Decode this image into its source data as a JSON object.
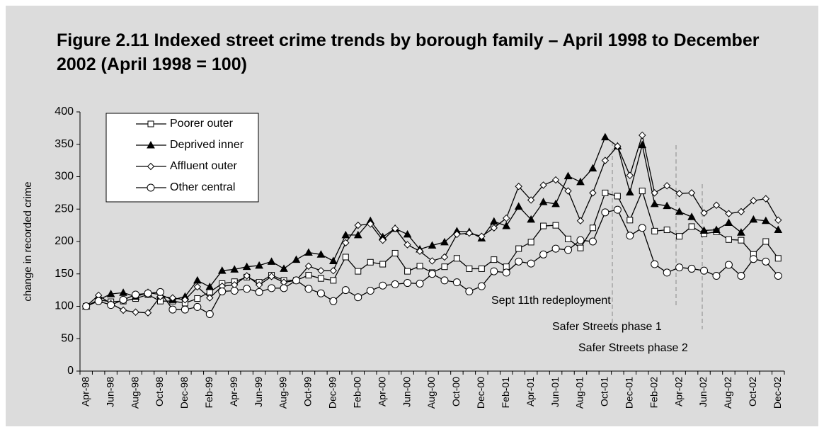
{
  "chart_data": {
    "type": "line",
    "title": "Figure 2.11 Indexed street crime trends by borough family – April 1998 to December 2002 (April 1998 = 100)",
    "y_label": "change in recorded crime",
    "categories": [
      "Apr-98",
      null,
      "Jun-98",
      null,
      "Aug-98",
      null,
      "Oct-98",
      null,
      "Dec-98",
      null,
      "Feb-99",
      null,
      "Apr-99",
      null,
      "Jun-99",
      null,
      "Aug-99",
      null,
      "Oct-99",
      null,
      "Dec-99",
      null,
      "Feb-00",
      null,
      "Apr-00",
      null,
      "Jun-00",
      null,
      "Aug-00",
      null,
      "Oct-00",
      null,
      "Dec-00",
      null,
      "Feb-01",
      null,
      "Apr-01",
      null,
      "Jun-01",
      null,
      "Aug-01",
      null,
      "Oct-01",
      null,
      "Dec-01",
      null,
      "Feb-02",
      null,
      "Apr-02",
      null,
      "Jun-02",
      null,
      "Aug-02",
      null,
      "Oct-02",
      null,
      "Dec-02"
    ],
    "series": [
      {
        "name": "Poorer outer",
        "color": "#000000",
        "marker": "square",
        "values": [
          100,
          110,
          107,
          108,
          112,
          118,
          108,
          108,
          105,
          112,
          122,
          135,
          138,
          145,
          137,
          148,
          140,
          140,
          148,
          143,
          140,
          176,
          154,
          168,
          165,
          182,
          154,
          162,
          152,
          161,
          174,
          158,
          158,
          172,
          161,
          189,
          199,
          224,
          225,
          204,
          190,
          221,
          275,
          270,
          233,
          278,
          216,
          218,
          208,
          223,
          212,
          215,
          203,
          202,
          180,
          200,
          174
        ]
      },
      {
        "name": "Deprived inner",
        "color": "#000000",
        "marker": "triangle",
        "values": [
          100,
          110,
          119,
          121,
          115,
          121,
          118,
          110,
          115,
          140,
          130,
          155,
          157,
          161,
          163,
          169,
          158,
          172,
          183,
          180,
          170,
          210,
          210,
          232,
          207,
          220,
          211,
          188,
          194,
          199,
          216,
          215,
          205,
          231,
          224,
          254,
          234,
          261,
          258,
          301,
          292,
          313,
          361,
          347,
          276,
          349,
          258,
          255,
          246,
          238,
          217,
          218,
          229,
          214,
          234,
          232,
          218
        ]
      },
      {
        "name": "Affluent outer",
        "color": "#000000",
        "marker": "diamond",
        "values": [
          100,
          117,
          104,
          94,
          91,
          90,
          115,
          113,
          110,
          130,
          113,
          131,
          133,
          147,
          133,
          146,
          137,
          140,
          162,
          155,
          155,
          198,
          225,
          227,
          202,
          220,
          195,
          185,
          170,
          176,
          211,
          213,
          208,
          221,
          236,
          285,
          264,
          287,
          295,
          278,
          232,
          275,
          325,
          347,
          302,
          364,
          275,
          286,
          274,
          275,
          244,
          256,
          243,
          246,
          263,
          266,
          233
        ]
      },
      {
        "name": "Other central",
        "color": "#000000",
        "marker": "circle",
        "values": [
          100,
          108,
          102,
          110,
          118,
          120,
          122,
          95,
          95,
          99,
          88,
          123,
          124,
          127,
          122,
          128,
          128,
          140,
          127,
          120,
          108,
          125,
          114,
          124,
          132,
          134,
          136,
          135,
          150,
          140,
          137,
          123,
          131,
          154,
          152,
          169,
          166,
          180,
          189,
          187,
          202,
          200,
          245,
          249,
          209,
          221,
          165,
          152,
          160,
          158,
          155,
          147,
          164,
          147,
          173,
          169,
          147
        ]
      }
    ],
    "annotations": [
      "Sept 11th redeployment",
      "Safer Streets phase 1",
      "Safer Streets phase 2"
    ],
    "ylim": [
      0,
      400
    ],
    "yticks": [
      0,
      50,
      100,
      150,
      200,
      250,
      300,
      350,
      400
    ],
    "grid": false,
    "legend": "upper left"
  }
}
